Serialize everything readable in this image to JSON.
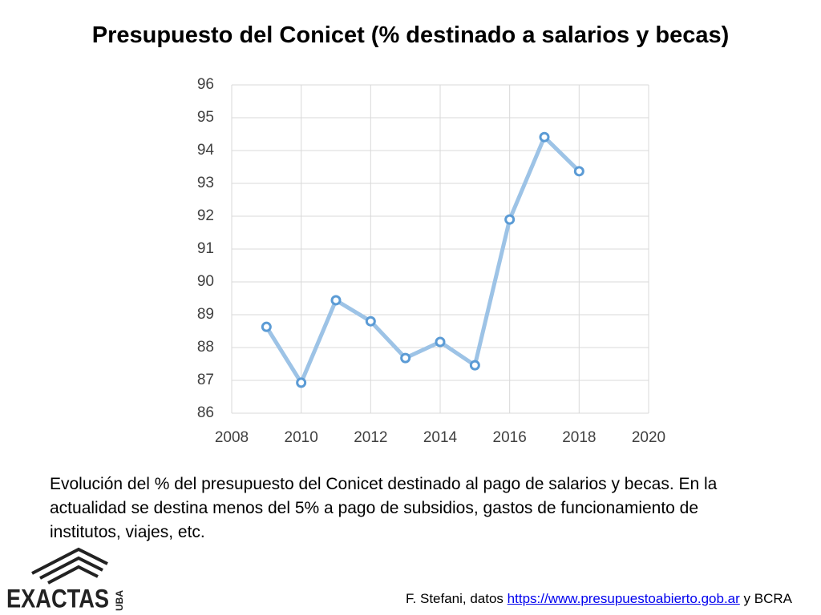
{
  "chart_data": {
    "type": "line",
    "title": "Presupuesto del Conicet (% destinado a salarios y becas)",
    "x": [
      2009,
      2010,
      2011,
      2012,
      2013,
      2014,
      2015,
      2016,
      2017,
      2018
    ],
    "series": [
      {
        "color": "#9dc3e6",
        "marker_color": "#5b9bd5",
        "values": [
          88.63,
          86.93,
          89.44,
          88.8,
          87.68,
          88.17,
          87.46,
          91.9,
          94.41,
          93.37
        ]
      }
    ],
    "xlim": [
      2008,
      2020
    ],
    "xticks": [
      2008,
      2010,
      2012,
      2014,
      2016,
      2018,
      2020
    ],
    "ylim": [
      86,
      96
    ],
    "yticks": [
      86,
      87,
      88,
      89,
      90,
      91,
      92,
      93,
      94,
      95,
      96
    ],
    "grid": true
  },
  "caption": "Evolución del % del presupuesto del Conicet destinado al pago de salarios y becas. En la actualidad se destina menos del 5% a pago de subsidios, gastos de funcionamiento de institutos, viajes, etc.",
  "source": {
    "prefix": "F. Stefani, datos",
    "link": "https://www.presupuestoabierto.gob.ar",
    "suffix": "y BCRA"
  },
  "logo": {
    "name": "EXACTAS",
    "sub": "UBA"
  }
}
